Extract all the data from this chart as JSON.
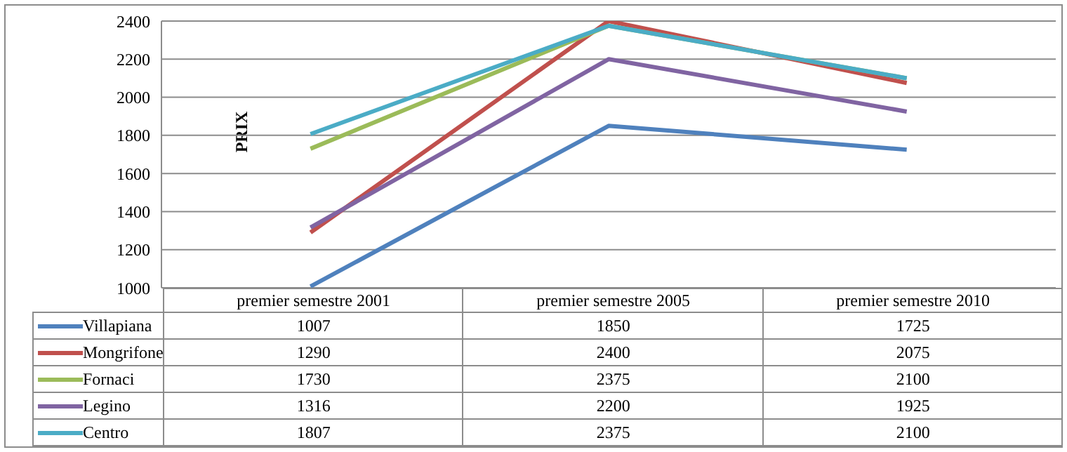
{
  "chart_data": {
    "type": "line",
    "ylabel": "PRIX",
    "categories": [
      "premier semestre 2001",
      "premier semestre 2005",
      "premier semestre 2010"
    ],
    "series": [
      {
        "name": "Villapiana",
        "color": "#4f81bd",
        "values": [
          1007,
          1850,
          1725
        ]
      },
      {
        "name": "Mongrifone",
        "color": "#c0504d",
        "values": [
          1290,
          2400,
          2075
        ]
      },
      {
        "name": "Fornaci",
        "color": "#9bbb59",
        "values": [
          1730,
          2375,
          2100
        ]
      },
      {
        "name": "Legino",
        "color": "#8064a2",
        "values": [
          1316,
          2200,
          1925
        ]
      },
      {
        "name": "Centro",
        "color": "#4bacc6",
        "values": [
          1807,
          2375,
          2100
        ]
      }
    ],
    "ylim": [
      1000,
      2400
    ],
    "yticks": [
      1000,
      1200,
      1400,
      1600,
      1800,
      2000,
      2200,
      2400
    ],
    "grid": "y",
    "legend": "bottom",
    "data_labels": true,
    "marker": "none"
  }
}
